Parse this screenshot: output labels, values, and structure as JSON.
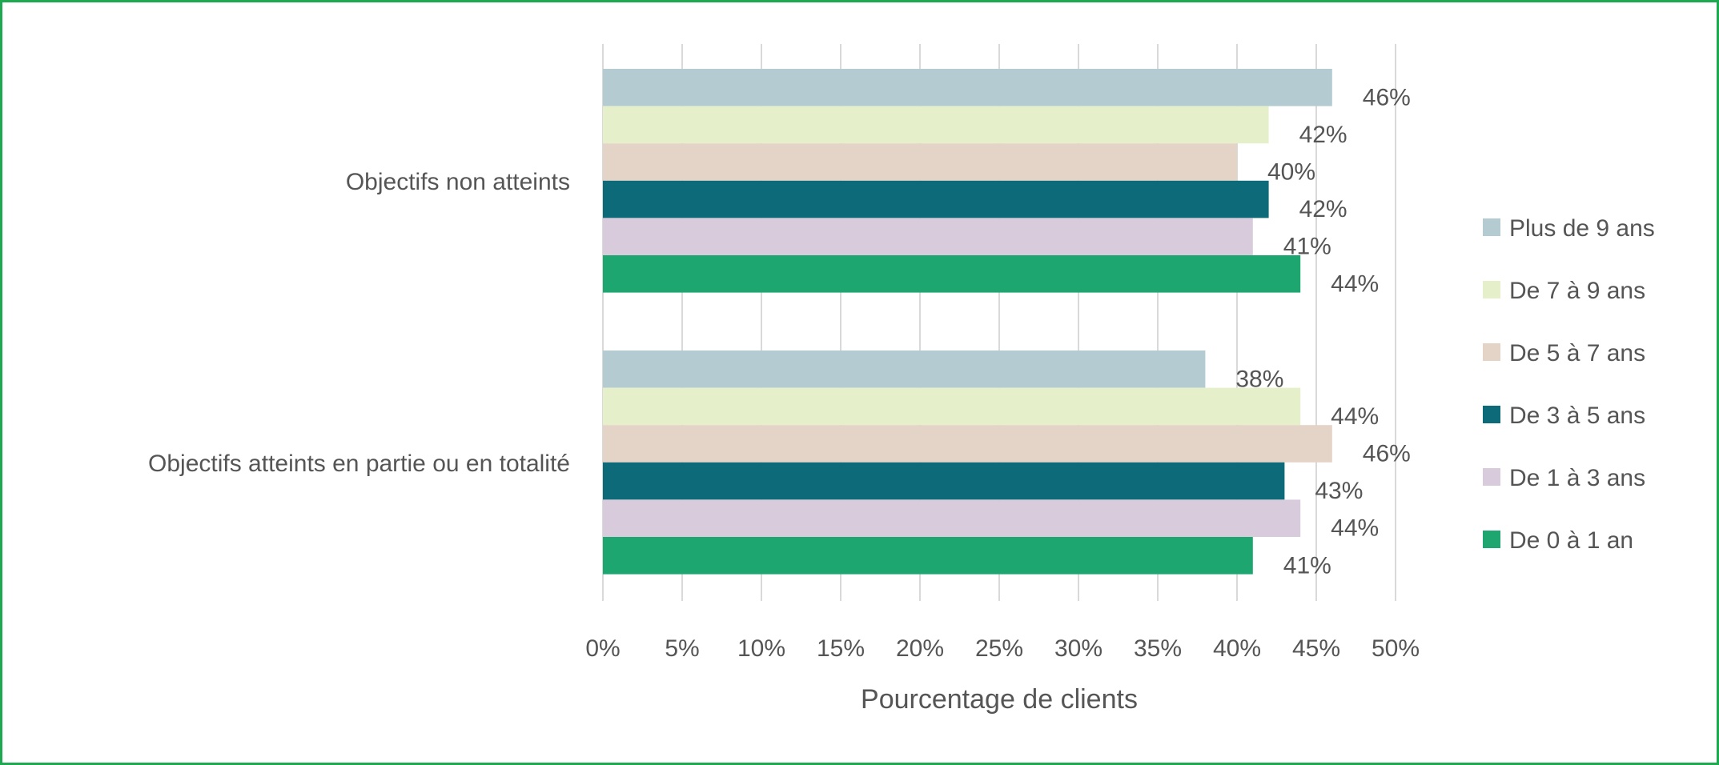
{
  "chart_data": {
    "type": "bar",
    "orientation": "horizontal",
    "title": "",
    "xlabel": "Pourcentage de clients",
    "ylabel": "",
    "xlim": [
      0,
      50
    ],
    "x_ticks": [
      "0%",
      "5%",
      "10%",
      "15%",
      "20%",
      "25%",
      "30%",
      "35%",
      "40%",
      "45%",
      "50%"
    ],
    "grid": true,
    "legend_position": "right",
    "categories": [
      "Objectifs non atteints",
      "Objectifs atteints en partie ou en totalité"
    ],
    "series": [
      {
        "name": "Plus de 9 ans",
        "color": "#b4cbd2",
        "values": [
          46,
          38
        ],
        "labels": [
          "46%",
          "38%"
        ]
      },
      {
        "name": "De 7 à 9 ans",
        "color": "#e5f0cb",
        "values": [
          42,
          44
        ],
        "labels": [
          "42%",
          "44%"
        ]
      },
      {
        "name": "De 5 à 7 ans",
        "color": "#e4d3c7",
        "values": [
          40,
          46
        ],
        "labels": [
          "40%",
          "46%"
        ]
      },
      {
        "name": "De 3 à 5 ans",
        "color": "#0d6b79",
        "values": [
          42,
          43
        ],
        "labels": [
          "42%",
          "43%"
        ]
      },
      {
        "name": "De 1 à 3 ans",
        "color": "#d8ccdc",
        "values": [
          41,
          44
        ],
        "labels": [
          "41%",
          "44%"
        ]
      },
      {
        "name": "De 0 à 1 an",
        "color": "#1da66f",
        "values": [
          44,
          41
        ],
        "labels": [
          "44%",
          "41%"
        ]
      }
    ]
  }
}
